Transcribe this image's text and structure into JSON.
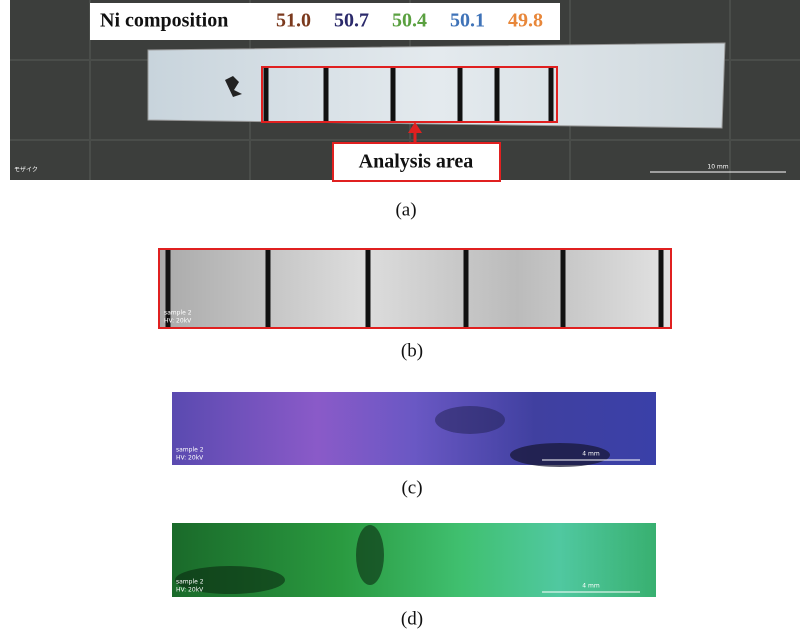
{
  "header": {
    "label": "Ni composition",
    "values": [
      "51.0",
      "50.7",
      "50.4",
      "50.1",
      "49.8"
    ]
  },
  "panel_a": {
    "caption": "(a)",
    "annotation": "Analysis area",
    "corner_text": "モザイク",
    "scale_label": "10 mm"
  },
  "panel_b": {
    "caption": "(b)",
    "sample": "sample 2",
    "voltage": "HV: 20kV"
  },
  "panel_c": {
    "caption": "(c)",
    "sample": "sample 2",
    "voltage": "HV: 20kV",
    "scale_label": "4 mm"
  },
  "panel_d": {
    "caption": "(d)",
    "sample": "sample 2",
    "voltage": "HV: 20kV",
    "scale_label": "4 mm"
  }
}
